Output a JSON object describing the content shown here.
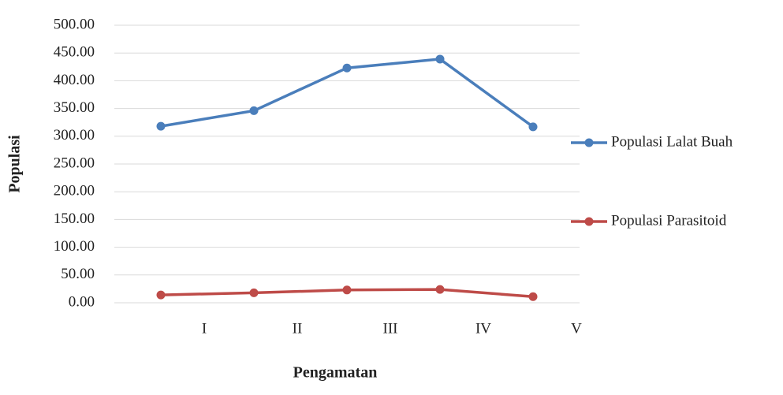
{
  "chart_data": {
    "type": "line",
    "x_label": "Pengamatan",
    "y_label": "Populasi",
    "categories": [
      "I",
      "II",
      "III",
      "IV",
      "V"
    ],
    "series": [
      {
        "name": "Populasi Lalat Buah",
        "color": "#4a7ebb",
        "values": [
          318,
          346,
          423,
          439,
          317
        ]
      },
      {
        "name": "Populasi Parasitoid",
        "color": "#be4b48",
        "values": [
          14,
          18,
          23,
          24,
          11
        ]
      }
    ],
    "ylim": [
      0,
      500
    ],
    "yticks": [
      {
        "value": 0,
        "label": "0.00"
      },
      {
        "value": 50,
        "label": "50.00"
      },
      {
        "value": 100,
        "label": "100.00"
      },
      {
        "value": 150,
        "label": "150.00"
      },
      {
        "value": 200,
        "label": "200.00"
      },
      {
        "value": 250,
        "label": "250.00"
      },
      {
        "value": 300,
        "label": "300.00"
      },
      {
        "value": 350,
        "label": "350.00"
      },
      {
        "value": 400,
        "label": "400.00"
      },
      {
        "value": 450,
        "label": "450.00"
      },
      {
        "value": 500,
        "label": "500.00"
      }
    ],
    "grid": true,
    "legend": "right"
  }
}
